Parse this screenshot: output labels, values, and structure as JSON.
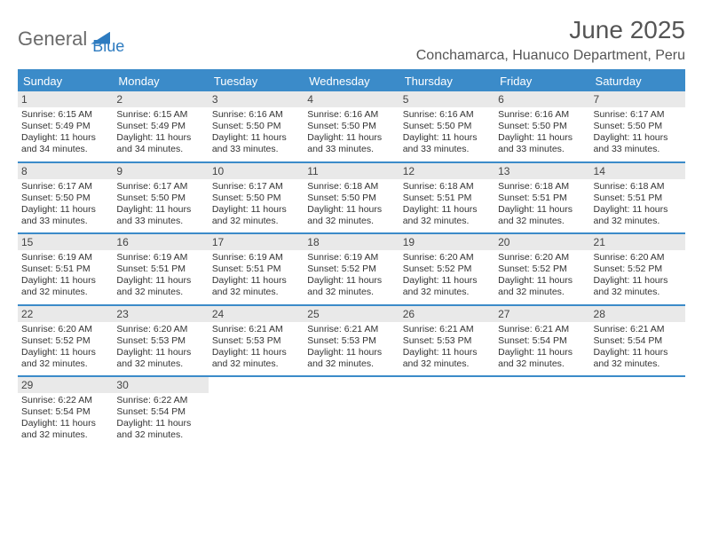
{
  "logo": {
    "part1": "General",
    "part2": "Blue"
  },
  "title": "June 2025",
  "location": "Conchamarca, Huanuco Department, Peru",
  "colors": {
    "accent": "#3b8bc9",
    "header_text": "#ffffff",
    "daynum_bg": "#e9e9e9",
    "body_text": "#333333",
    "logo_gray": "#6b6b6b",
    "logo_blue": "#2d7bc0",
    "background": "#ffffff"
  },
  "typography": {
    "title_fontsize": 28,
    "location_fontsize": 16,
    "dayheader_fontsize": 13,
    "daynum_fontsize": 12,
    "cell_fontsize": 10.5
  },
  "day_headers": [
    "Sunday",
    "Monday",
    "Tuesday",
    "Wednesday",
    "Thursday",
    "Friday",
    "Saturday"
  ],
  "weeks": [
    [
      {
        "n": "1",
        "sr": "6:15 AM",
        "ss": "5:49 PM",
        "dl": "11 hours and 34 minutes."
      },
      {
        "n": "2",
        "sr": "6:15 AM",
        "ss": "5:49 PM",
        "dl": "11 hours and 34 minutes."
      },
      {
        "n": "3",
        "sr": "6:16 AM",
        "ss": "5:50 PM",
        "dl": "11 hours and 33 minutes."
      },
      {
        "n": "4",
        "sr": "6:16 AM",
        "ss": "5:50 PM",
        "dl": "11 hours and 33 minutes."
      },
      {
        "n": "5",
        "sr": "6:16 AM",
        "ss": "5:50 PM",
        "dl": "11 hours and 33 minutes."
      },
      {
        "n": "6",
        "sr": "6:16 AM",
        "ss": "5:50 PM",
        "dl": "11 hours and 33 minutes."
      },
      {
        "n": "7",
        "sr": "6:17 AM",
        "ss": "5:50 PM",
        "dl": "11 hours and 33 minutes."
      }
    ],
    [
      {
        "n": "8",
        "sr": "6:17 AM",
        "ss": "5:50 PM",
        "dl": "11 hours and 33 minutes."
      },
      {
        "n": "9",
        "sr": "6:17 AM",
        "ss": "5:50 PM",
        "dl": "11 hours and 33 minutes."
      },
      {
        "n": "10",
        "sr": "6:17 AM",
        "ss": "5:50 PM",
        "dl": "11 hours and 32 minutes."
      },
      {
        "n": "11",
        "sr": "6:18 AM",
        "ss": "5:50 PM",
        "dl": "11 hours and 32 minutes."
      },
      {
        "n": "12",
        "sr": "6:18 AM",
        "ss": "5:51 PM",
        "dl": "11 hours and 32 minutes."
      },
      {
        "n": "13",
        "sr": "6:18 AM",
        "ss": "5:51 PM",
        "dl": "11 hours and 32 minutes."
      },
      {
        "n": "14",
        "sr": "6:18 AM",
        "ss": "5:51 PM",
        "dl": "11 hours and 32 minutes."
      }
    ],
    [
      {
        "n": "15",
        "sr": "6:19 AM",
        "ss": "5:51 PM",
        "dl": "11 hours and 32 minutes."
      },
      {
        "n": "16",
        "sr": "6:19 AM",
        "ss": "5:51 PM",
        "dl": "11 hours and 32 minutes."
      },
      {
        "n": "17",
        "sr": "6:19 AM",
        "ss": "5:51 PM",
        "dl": "11 hours and 32 minutes."
      },
      {
        "n": "18",
        "sr": "6:19 AM",
        "ss": "5:52 PM",
        "dl": "11 hours and 32 minutes."
      },
      {
        "n": "19",
        "sr": "6:20 AM",
        "ss": "5:52 PM",
        "dl": "11 hours and 32 minutes."
      },
      {
        "n": "20",
        "sr": "6:20 AM",
        "ss": "5:52 PM",
        "dl": "11 hours and 32 minutes."
      },
      {
        "n": "21",
        "sr": "6:20 AM",
        "ss": "5:52 PM",
        "dl": "11 hours and 32 minutes."
      }
    ],
    [
      {
        "n": "22",
        "sr": "6:20 AM",
        "ss": "5:52 PM",
        "dl": "11 hours and 32 minutes."
      },
      {
        "n": "23",
        "sr": "6:20 AM",
        "ss": "5:53 PM",
        "dl": "11 hours and 32 minutes."
      },
      {
        "n": "24",
        "sr": "6:21 AM",
        "ss": "5:53 PM",
        "dl": "11 hours and 32 minutes."
      },
      {
        "n": "25",
        "sr": "6:21 AM",
        "ss": "5:53 PM",
        "dl": "11 hours and 32 minutes."
      },
      {
        "n": "26",
        "sr": "6:21 AM",
        "ss": "5:53 PM",
        "dl": "11 hours and 32 minutes."
      },
      {
        "n": "27",
        "sr": "6:21 AM",
        "ss": "5:54 PM",
        "dl": "11 hours and 32 minutes."
      },
      {
        "n": "28",
        "sr": "6:21 AM",
        "ss": "5:54 PM",
        "dl": "11 hours and 32 minutes."
      }
    ],
    [
      {
        "n": "29",
        "sr": "6:22 AM",
        "ss": "5:54 PM",
        "dl": "11 hours and 32 minutes."
      },
      {
        "n": "30",
        "sr": "6:22 AM",
        "ss": "5:54 PM",
        "dl": "11 hours and 32 minutes."
      },
      null,
      null,
      null,
      null,
      null
    ]
  ],
  "labels": {
    "sunrise": "Sunrise:",
    "sunset": "Sunset:",
    "daylight": "Daylight:"
  }
}
